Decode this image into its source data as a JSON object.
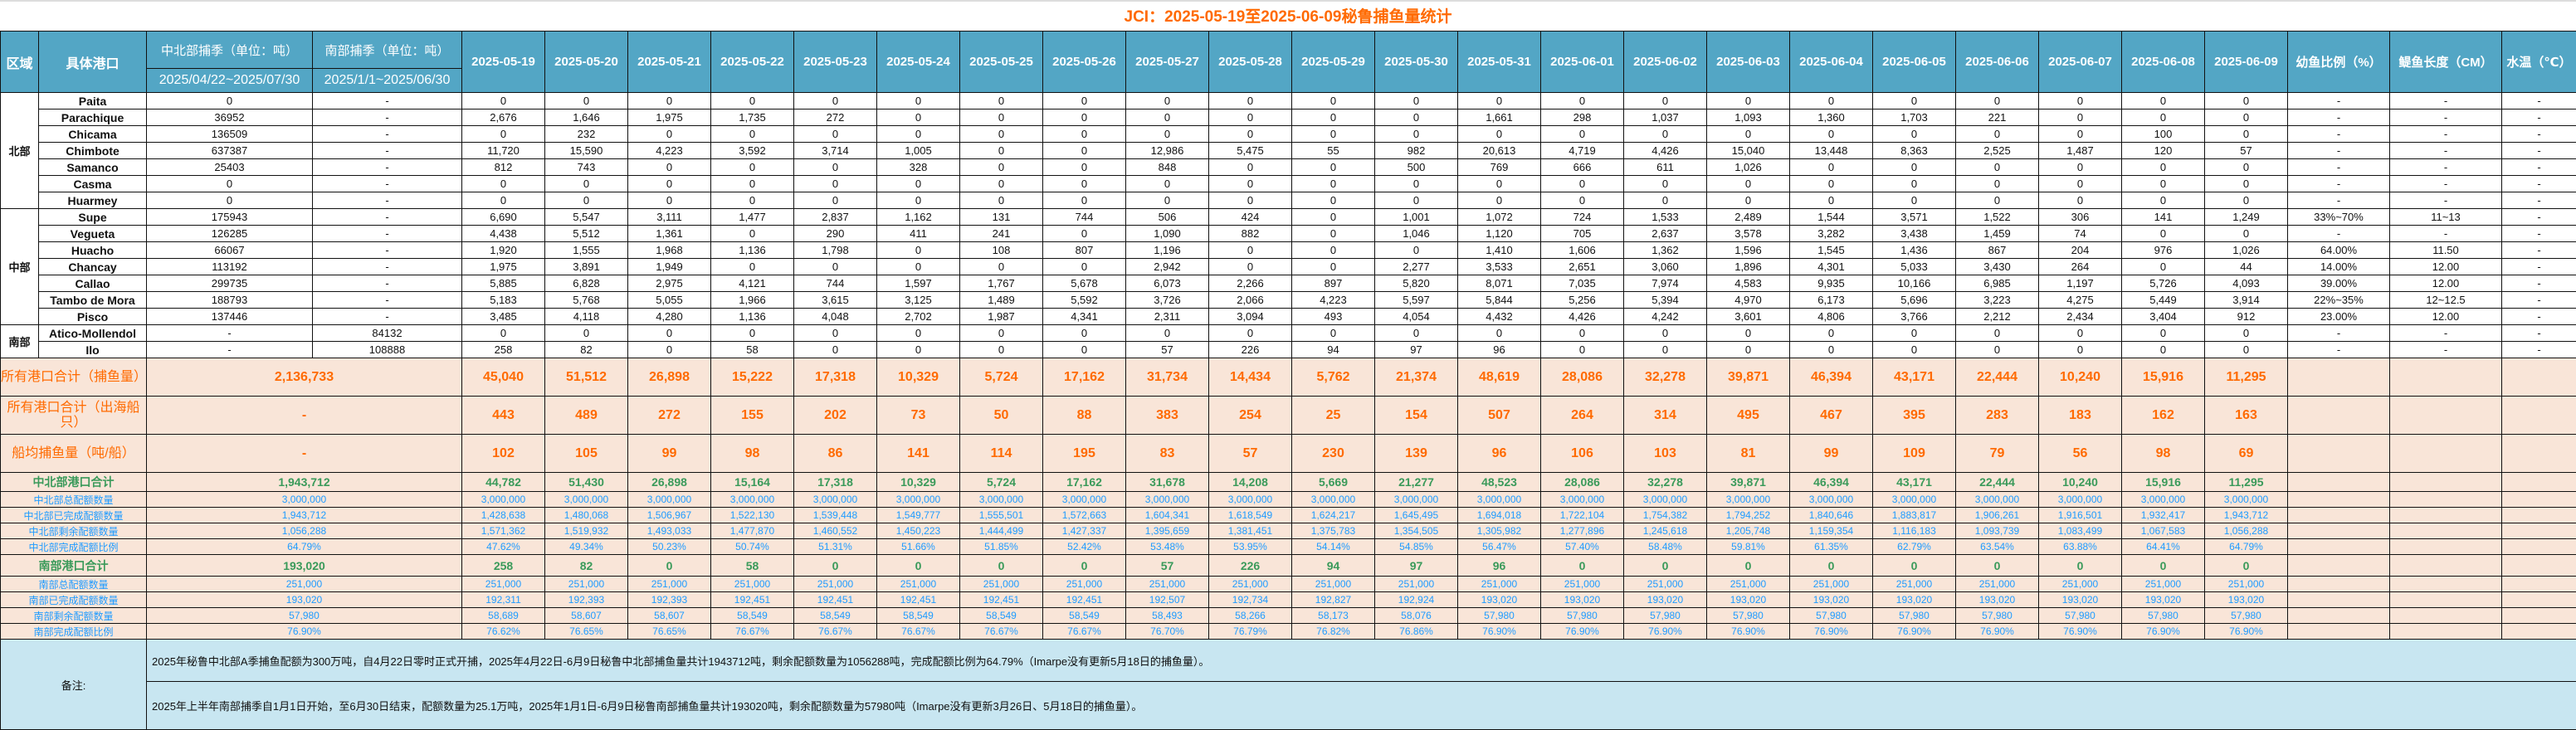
{
  "title": "JCI：2025-05-19至2025-06-09秘鲁捕鱼量统计",
  "header": {
    "region": "区域",
    "port": "具体港口",
    "north_season": "中北部捕季（单位：吨）",
    "north_period": "2025/04/22~2025/07/30",
    "south_season": "南部捕季（单位：吨）",
    "south_period": "2025/1/1~2025/06/30",
    "dates": [
      "2025-05-19",
      "2025-05-20",
      "2025-05-21",
      "2025-05-22",
      "2025-05-23",
      "2025-05-24",
      "2025-05-25",
      "2025-05-26",
      "2025-05-27",
      "2025-05-28",
      "2025-05-29",
      "2025-05-30",
      "2025-05-31",
      "2025-06-01",
      "2025-06-02",
      "2025-06-03",
      "2025-06-04",
      "2025-06-05",
      "2025-06-06",
      "2025-06-07",
      "2025-06-08",
      "2025-06-09"
    ],
    "juvenile": "幼鱼比例（%）",
    "length": "鳀鱼长度（CM）",
    "temp": "水温（℃）"
  },
  "regions": [
    {
      "label": "北部",
      "ports": [
        {
          "name": "Paita",
          "north": "0",
          "south": "-",
          "values": [
            "0",
            "0",
            "0",
            "0",
            "0",
            "0",
            "0",
            "0",
            "0",
            "0",
            "0",
            "0",
            "0",
            "0",
            "0",
            "0",
            "0",
            "0",
            "0",
            "0",
            "0",
            "0"
          ],
          "juvenile": "-",
          "length": "-",
          "temp": "-"
        },
        {
          "name": "Parachique",
          "north": "36952",
          "south": "-",
          "values": [
            "2,676",
            "1,646",
            "1,975",
            "1,735",
            "272",
            "0",
            "0",
            "0",
            "0",
            "0",
            "0",
            "0",
            "1,661",
            "298",
            "1,037",
            "1,093",
            "1,360",
            "1,703",
            "221",
            "0",
            "0",
            "0"
          ],
          "juvenile": "-",
          "length": "-",
          "temp": "-"
        },
        {
          "name": "Chicama",
          "north": "136509",
          "south": "-",
          "values": [
            "0",
            "232",
            "0",
            "0",
            "0",
            "0",
            "0",
            "0",
            "0",
            "0",
            "0",
            "0",
            "0",
            "0",
            "0",
            "0",
            "0",
            "0",
            "0",
            "0",
            "100",
            "0"
          ],
          "juvenile": "-",
          "length": "-",
          "temp": "-"
        },
        {
          "name": "Chimbote",
          "north": "637387",
          "south": "-",
          "values": [
            "11,720",
            "15,590",
            "4,223",
            "3,592",
            "3,714",
            "1,005",
            "0",
            "0",
            "12,986",
            "5,475",
            "55",
            "982",
            "20,613",
            "4,719",
            "4,426",
            "15,040",
            "13,448",
            "8,363",
            "2,525",
            "1,487",
            "120",
            "57"
          ],
          "juvenile": "-",
          "length": "-",
          "temp": "-"
        },
        {
          "name": "Samanco",
          "north": "25403",
          "south": "-",
          "values": [
            "812",
            "743",
            "0",
            "0",
            "0",
            "328",
            "0",
            "0",
            "848",
            "0",
            "0",
            "500",
            "769",
            "666",
            "611",
            "1,026",
            "0",
            "0",
            "0",
            "0",
            "0",
            "0"
          ],
          "juvenile": "-",
          "length": "-",
          "temp": "-"
        },
        {
          "name": "Casma",
          "north": "0",
          "south": "-",
          "values": [
            "0",
            "0",
            "0",
            "0",
            "0",
            "0",
            "0",
            "0",
            "0",
            "0",
            "0",
            "0",
            "0",
            "0",
            "0",
            "0",
            "0",
            "0",
            "0",
            "0",
            "0",
            "0"
          ],
          "juvenile": "-",
          "length": "-",
          "temp": "-"
        },
        {
          "name": "Huarmey",
          "north": "0",
          "south": "-",
          "values": [
            "0",
            "0",
            "0",
            "0",
            "0",
            "0",
            "0",
            "0",
            "0",
            "0",
            "0",
            "0",
            "0",
            "0",
            "0",
            "0",
            "0",
            "0",
            "0",
            "0",
            "0",
            "0"
          ],
          "juvenile": "-",
          "length": "-",
          "temp": "-"
        }
      ]
    },
    {
      "label": "中部",
      "ports": [
        {
          "name": "Supe",
          "north": "175943",
          "south": "-",
          "values": [
            "6,690",
            "5,547",
            "3,111",
            "1,477",
            "2,837",
            "1,162",
            "131",
            "744",
            "506",
            "424",
            "0",
            "1,001",
            "1,072",
            "724",
            "1,533",
            "2,489",
            "1,544",
            "3,571",
            "1,522",
            "306",
            "141",
            "1,249"
          ],
          "juvenile": "33%~70%",
          "length": "11~13",
          "temp": "-"
        },
        {
          "name": "Vegueta",
          "north": "126285",
          "south": "-",
          "values": [
            "4,438",
            "5,512",
            "1,361",
            "0",
            "290",
            "411",
            "241",
            "0",
            "1,090",
            "882",
            "0",
            "1,046",
            "1,120",
            "705",
            "2,637",
            "3,578",
            "3,282",
            "3,438",
            "1,459",
            "74",
            "0",
            "0"
          ],
          "juvenile": "-",
          "length": "-",
          "temp": "-"
        },
        {
          "name": "Huacho",
          "north": "66067",
          "south": "-",
          "values": [
            "1,920",
            "1,555",
            "1,968",
            "1,136",
            "1,798",
            "0",
            "108",
            "807",
            "1,196",
            "0",
            "0",
            "0",
            "1,410",
            "1,606",
            "1,362",
            "1,596",
            "1,545",
            "1,436",
            "867",
            "204",
            "976",
            "1,026"
          ],
          "juvenile": "64.00%",
          "length": "11.50",
          "temp": "-"
        },
        {
          "name": "Chancay",
          "north": "113192",
          "south": "-",
          "values": [
            "1,975",
            "3,891",
            "1,949",
            "0",
            "0",
            "0",
            "0",
            "0",
            "2,942",
            "0",
            "0",
            "2,277",
            "3,533",
            "2,651",
            "3,060",
            "1,896",
            "4,301",
            "5,033",
            "3,430",
            "264",
            "0",
            "44"
          ],
          "juvenile": "14.00%",
          "length": "12.00",
          "temp": "-"
        },
        {
          "name": "Callao",
          "north": "299735",
          "south": "-",
          "values": [
            "5,885",
            "6,828",
            "2,975",
            "4,121",
            "744",
            "1,597",
            "1,767",
            "5,678",
            "6,073",
            "2,266",
            "897",
            "5,820",
            "8,071",
            "7,035",
            "7,974",
            "4,583",
            "9,935",
            "10,166",
            "6,985",
            "1,197",
            "5,726",
            "4,093"
          ],
          "juvenile": "39.00%",
          "length": "12.00",
          "temp": "-"
        },
        {
          "name": "Tambo de Mora",
          "north": "188793",
          "south": "-",
          "values": [
            "5,183",
            "5,768",
            "5,055",
            "1,966",
            "3,615",
            "3,125",
            "1,489",
            "5,592",
            "3,726",
            "2,066",
            "4,223",
            "5,597",
            "5,844",
            "5,256",
            "5,394",
            "4,970",
            "6,173",
            "5,696",
            "3,223",
            "4,275",
            "5,449",
            "3,914"
          ],
          "juvenile": "22%~35%",
          "length": "12~12.5",
          "temp": "-"
        },
        {
          "name": "Pisco",
          "north": "137446",
          "south": "-",
          "values": [
            "3,485",
            "4,118",
            "4,280",
            "1,136",
            "4,048",
            "2,702",
            "1,987",
            "4,341",
            "2,311",
            "3,094",
            "493",
            "4,054",
            "4,432",
            "4,426",
            "4,242",
            "3,601",
            "4,806",
            "3,766",
            "2,212",
            "2,434",
            "3,404",
            "912"
          ],
          "juvenile": "23.00%",
          "length": "12.00",
          "temp": "-"
        }
      ]
    },
    {
      "label": "南部",
      "ports": [
        {
          "name": "Atico-Mollendol",
          "north": "-",
          "south": "84132",
          "values": [
            "0",
            "0",
            "0",
            "0",
            "0",
            "0",
            "0",
            "0",
            "0",
            "0",
            "0",
            "0",
            "0",
            "0",
            "0",
            "0",
            "0",
            "0",
            "0",
            "0",
            "0",
            "0"
          ],
          "juvenile": "-",
          "length": "-",
          "temp": "-"
        },
        {
          "name": "Ilo",
          "north": "-",
          "south": "108888",
          "values": [
            "258",
            "82",
            "0",
            "58",
            "0",
            "0",
            "0",
            "0",
            "57",
            "226",
            "94",
            "97",
            "96",
            "0",
            "0",
            "0",
            "0",
            "0",
            "0",
            "0",
            "0",
            "0"
          ],
          "juvenile": "-",
          "length": "-",
          "temp": "-"
        }
      ]
    }
  ],
  "summary": [
    {
      "key": "total-catch",
      "style": "big",
      "label": "所有港口合计（捕鱼量）",
      "total": "2,136,733",
      "values": [
        "45,040",
        "51,512",
        "26,898",
        "15,222",
        "17,318",
        "10,329",
        "5,724",
        "17,162",
        "31,734",
        "14,434",
        "5,762",
        "21,374",
        "48,619",
        "28,086",
        "32,278",
        "39,871",
        "46,394",
        "43,171",
        "22,444",
        "10,240",
        "15,916",
        "11,295"
      ]
    },
    {
      "key": "total-boats",
      "style": "big",
      "label": "所有港口合计（出海船只）",
      "total": "-",
      "values": [
        "443",
        "489",
        "272",
        "155",
        "202",
        "73",
        "50",
        "88",
        "383",
        "254",
        "25",
        "154",
        "507",
        "264",
        "314",
        "495",
        "467",
        "395",
        "283",
        "183",
        "162",
        "163"
      ]
    },
    {
      "key": "avg-per-boat",
      "style": "big",
      "label": "船均捕鱼量（吨/船）",
      "total": "-",
      "values": [
        "102",
        "105",
        "99",
        "98",
        "86",
        "141",
        "114",
        "195",
        "83",
        "57",
        "230",
        "139",
        "96",
        "106",
        "103",
        "81",
        "99",
        "109",
        "79",
        "56",
        "98",
        "69"
      ]
    },
    {
      "key": "north-total",
      "style": "gtot",
      "label": "中北部港口合计",
      "total": "1,943,712",
      "values": [
        "44,782",
        "51,430",
        "26,898",
        "15,164",
        "17,318",
        "10,329",
        "5,724",
        "17,162",
        "31,678",
        "14,208",
        "5,669",
        "21,277",
        "48,523",
        "28,086",
        "32,278",
        "39,871",
        "46,394",
        "43,171",
        "22,444",
        "10,240",
        "15,916",
        "11,295"
      ]
    },
    {
      "key": "north-quota",
      "style": "blue",
      "label": "中北部总配额数量",
      "total": "3,000,000",
      "values": [
        "3,000,000",
        "3,000,000",
        "3,000,000",
        "3,000,000",
        "3,000,000",
        "3,000,000",
        "3,000,000",
        "3,000,000",
        "3,000,000",
        "3,000,000",
        "3,000,000",
        "3,000,000",
        "3,000,000",
        "3,000,000",
        "3,000,000",
        "3,000,000",
        "3,000,000",
        "3,000,000",
        "3,000,000",
        "3,000,000",
        "3,000,000",
        "3,000,000"
      ]
    },
    {
      "key": "north-done",
      "style": "blue",
      "label": "中北部已完成配额数量",
      "total": "1,943,712",
      "values": [
        "1,428,638",
        "1,480,068",
        "1,506,967",
        "1,522,130",
        "1,539,448",
        "1,549,777",
        "1,555,501",
        "1,572,663",
        "1,604,341",
        "1,618,549",
        "1,624,217",
        "1,645,495",
        "1,694,018",
        "1,722,104",
        "1,754,382",
        "1,794,252",
        "1,840,646",
        "1,883,817",
        "1,906,261",
        "1,916,501",
        "1,932,417",
        "1,943,712"
      ]
    },
    {
      "key": "north-remaining",
      "style": "blue",
      "label": "中北部剩余配额数量",
      "total": "1,056,288",
      "values": [
        "1,571,362",
        "1,519,932",
        "1,493,033",
        "1,477,870",
        "1,460,552",
        "1,450,223",
        "1,444,499",
        "1,427,337",
        "1,395,659",
        "1,381,451",
        "1,375,783",
        "1,354,505",
        "1,305,982",
        "1,277,896",
        "1,245,618",
        "1,205,748",
        "1,159,354",
        "1,116,183",
        "1,093,739",
        "1,083,499",
        "1,067,583",
        "1,056,288"
      ]
    },
    {
      "key": "north-ratio",
      "style": "blue",
      "label": "中北部完成配额比例",
      "total": "64.79%",
      "values": [
        "47.62%",
        "49.34%",
        "50.23%",
        "50.74%",
        "51.31%",
        "51.66%",
        "51.85%",
        "52.42%",
        "53.48%",
        "53.95%",
        "54.14%",
        "54.85%",
        "56.47%",
        "57.40%",
        "58.48%",
        "59.81%",
        "61.35%",
        "62.79%",
        "63.54%",
        "63.88%",
        "64.41%",
        "64.79%"
      ]
    },
    {
      "key": "south-total",
      "style": "stot",
      "label": "南部港口合计",
      "total": "193,020",
      "values": [
        "258",
        "82",
        "0",
        "58",
        "0",
        "0",
        "0",
        "0",
        "57",
        "226",
        "94",
        "97",
        "96",
        "0",
        "0",
        "0",
        "0",
        "0",
        "0",
        "0",
        "0",
        "0"
      ]
    },
    {
      "key": "south-quota",
      "style": "blue",
      "label": "南部总配额数量",
      "total": "251,000",
      "values": [
        "251,000",
        "251,000",
        "251,000",
        "251,000",
        "251,000",
        "251,000",
        "251,000",
        "251,000",
        "251,000",
        "251,000",
        "251,000",
        "251,000",
        "251,000",
        "251,000",
        "251,000",
        "251,000",
        "251,000",
        "251,000",
        "251,000",
        "251,000",
        "251,000",
        "251,000"
      ]
    },
    {
      "key": "south-done",
      "style": "blue",
      "label": "南部已完成配额数量",
      "total": "193,020",
      "values": [
        "192,311",
        "192,393",
        "192,393",
        "192,451",
        "192,451",
        "192,451",
        "192,451",
        "192,451",
        "192,507",
        "192,734",
        "192,827",
        "192,924",
        "193,020",
        "193,020",
        "193,020",
        "193,020",
        "193,020",
        "193,020",
        "193,020",
        "193,020",
        "193,020",
        "193,020"
      ]
    },
    {
      "key": "south-remaining",
      "style": "blue",
      "label": "南部剩余配额数量",
      "total": "57,980",
      "values": [
        "58,689",
        "58,607",
        "58,607",
        "58,549",
        "58,549",
        "58,549",
        "58,549",
        "58,549",
        "58,493",
        "58,266",
        "58,173",
        "58,076",
        "57,980",
        "57,980",
        "57,980",
        "57,980",
        "57,980",
        "57,980",
        "57,980",
        "57,980",
        "57,980",
        "57,980"
      ]
    },
    {
      "key": "south-ratio",
      "style": "blue",
      "label": "南部完成配额比例",
      "total": "76.90%",
      "values": [
        "76.62%",
        "76.65%",
        "76.65%",
        "76.67%",
        "76.67%",
        "76.67%",
        "76.67%",
        "76.67%",
        "76.70%",
        "76.79%",
        "76.82%",
        "76.86%",
        "76.90%",
        "76.90%",
        "76.90%",
        "76.90%",
        "76.90%",
        "76.90%",
        "76.90%",
        "76.90%",
        "76.90%",
        "76.90%"
      ]
    }
  ],
  "notes": {
    "label": "备注:",
    "lines": [
      "2025年秘鲁中北部A季捕鱼配额为300万吨，自4月22日零时正式开捕，2025年4月22日-6月9日秘鲁中北部捕鱼量共计1943712吨，剩余配额数量为1056288吨，完成配额比例为64.79%（Imarpe没有更新5月18日的捕鱼量）。",
      "2025年上半年南部捕季自1月1日开始，至6月30日结束，配额数量为25.1万吨，2025年1月1日-6月9日秘鲁南部捕鱼量共计193020吨，剩余配额数量为57980吨（Imarpe没有更新3月26日、5月18日的捕鱼量）。"
    ]
  },
  "colors": {
    "header_bg": "#53a6c5",
    "title": "#ff6a00",
    "port_name": "#ff8c00",
    "north_quota": "#2e9a5c",
    "south_quota": "#1e8fff",
    "summary_bg": "#f9e5d8",
    "notes_bg": "#c8e6f1"
  }
}
